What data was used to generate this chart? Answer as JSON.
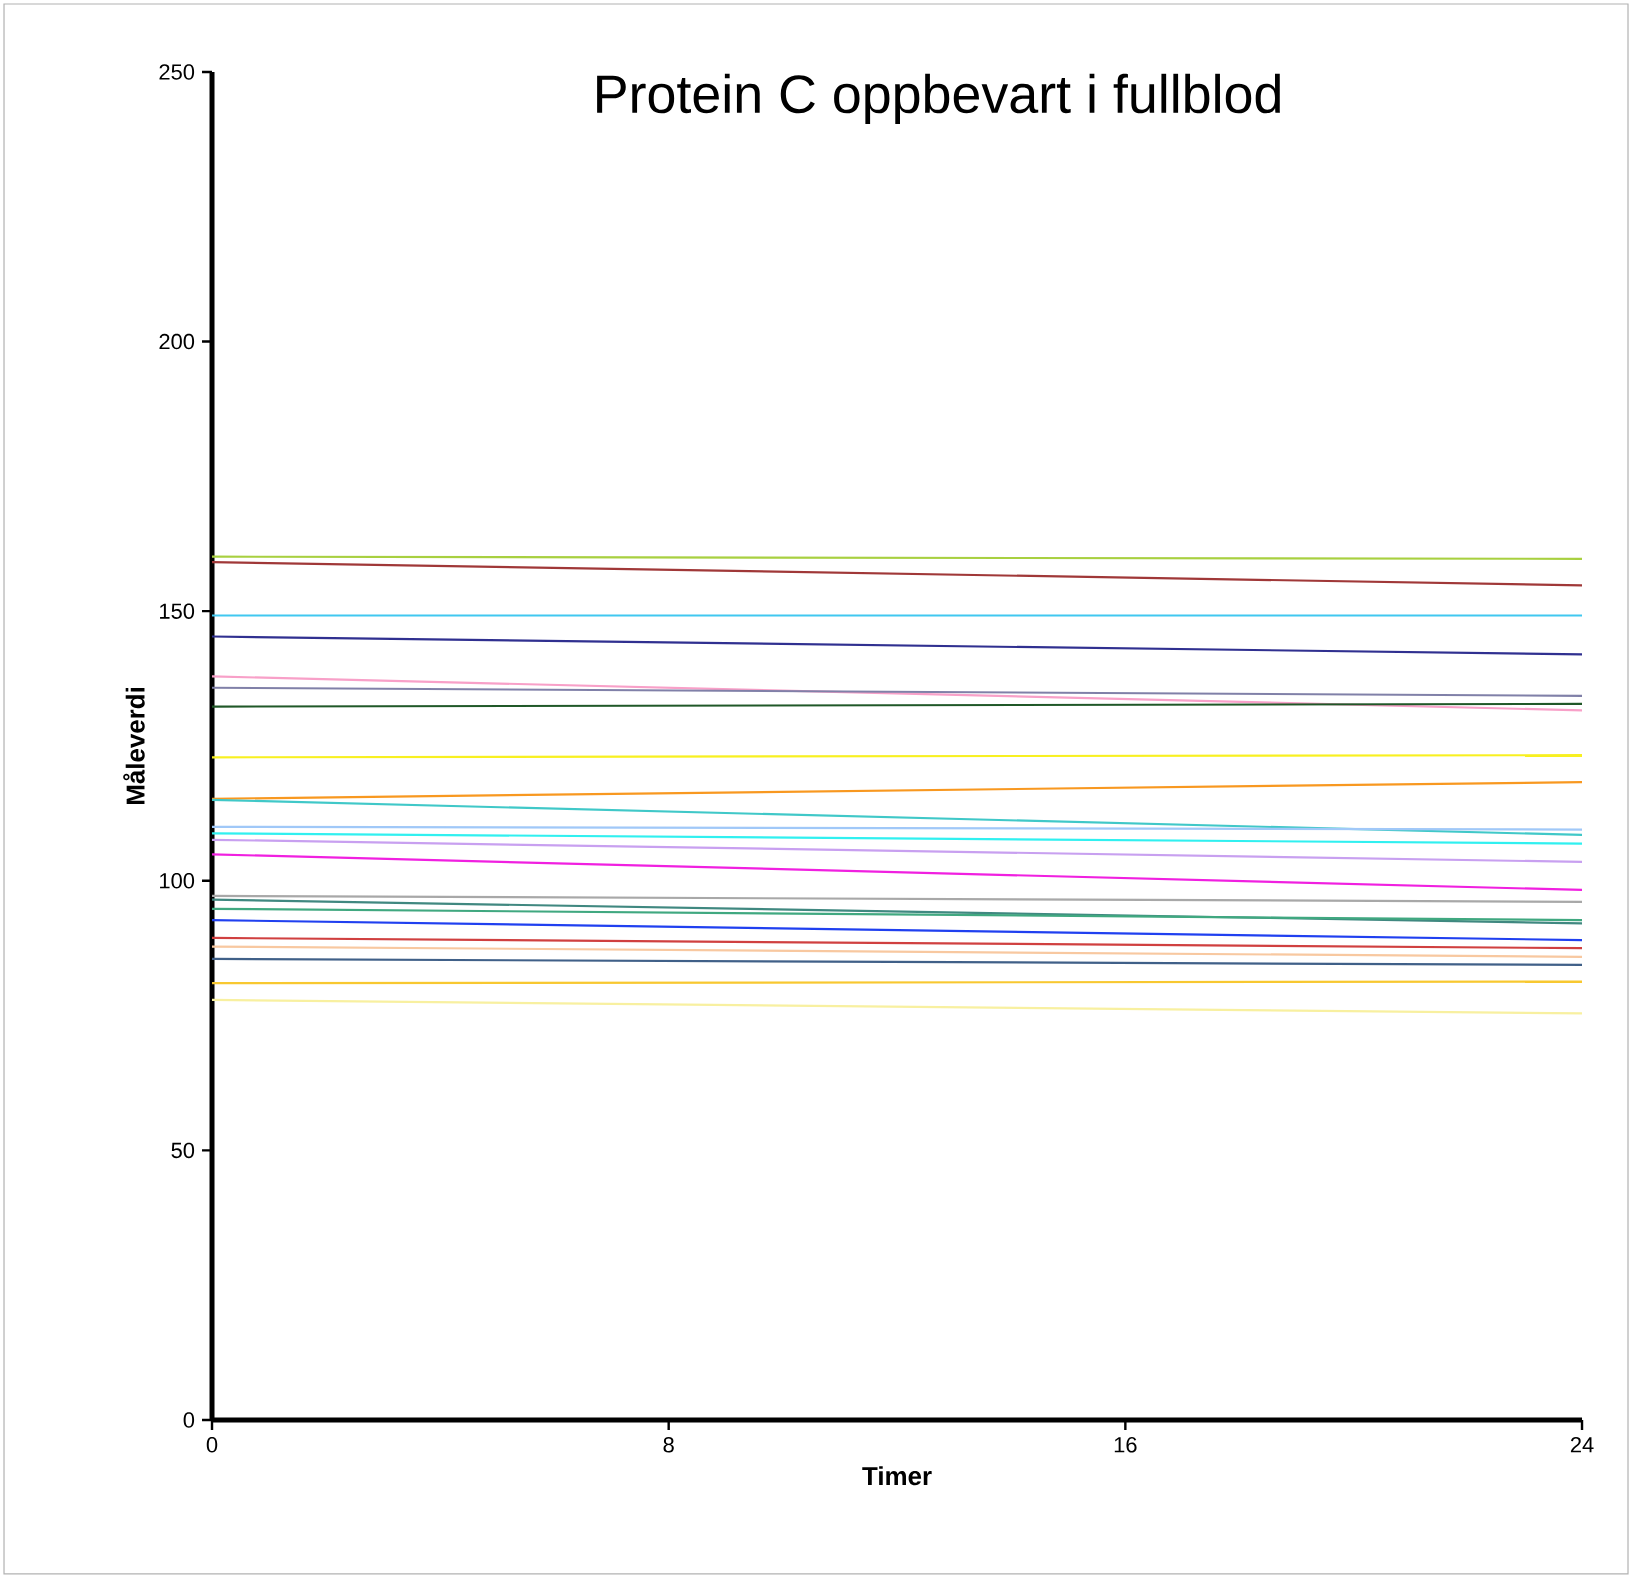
{
  "chart_data": {
    "type": "line",
    "title": "Protein C oppbevart i fullblod",
    "xlabel": "Timer",
    "ylabel": "Måleverdi",
    "x": [
      0,
      24
    ],
    "xlim": [
      0,
      24
    ],
    "xticks": [
      0,
      8,
      16,
      24
    ],
    "ylim": [
      0,
      250
    ],
    "yticks": [
      0,
      50,
      100,
      150,
      200,
      250
    ],
    "marker": "none",
    "line_style": "solid",
    "series": [
      {
        "color": "#a8d040",
        "values": [
          160.1,
          159.7
        ]
      },
      {
        "color": "#a03838",
        "values": [
          159.1,
          154.8
        ]
      },
      {
        "color": "#40c8f0",
        "values": [
          149.2,
          149.2
        ]
      },
      {
        "color": "#303090",
        "values": [
          145.3,
          142.0
        ]
      },
      {
        "color": "#f8a0c8",
        "values": [
          137.9,
          131.6
        ]
      },
      {
        "color": "#8080a8",
        "values": [
          135.8,
          134.3
        ]
      },
      {
        "color": "#205828",
        "values": [
          132.3,
          132.8
        ]
      },
      {
        "color": "#f8f020",
        "values": [
          122.9,
          123.3
        ]
      },
      {
        "color": "#f89820",
        "values": [
          115.2,
          118.3
        ]
      },
      {
        "color": "#40c8c8",
        "values": [
          115.0,
          108.5
        ]
      },
      {
        "color": "#a0c8f8",
        "values": [
          110.0,
          109.5
        ]
      },
      {
        "color": "#30f0f0",
        "values": [
          108.8,
          106.9
        ]
      },
      {
        "color": "#c8a0f0",
        "values": [
          107.6,
          103.5
        ]
      },
      {
        "color": "#f020e0",
        "values": [
          104.9,
          98.3
        ]
      },
      {
        "color": "#a8a8a8",
        "values": [
          97.2,
          96.1
        ]
      },
      {
        "color": "#408880",
        "values": [
          96.5,
          92.1
        ]
      },
      {
        "color": "#40a880",
        "values": [
          94.8,
          92.7
        ]
      },
      {
        "color": "#2040f0",
        "values": [
          92.7,
          89.0
        ]
      },
      {
        "color": "#d04040",
        "values": [
          89.4,
          87.5
        ]
      },
      {
        "color": "#f8c8a0",
        "values": [
          87.8,
          85.9
        ]
      },
      {
        "color": "#406088",
        "values": [
          85.5,
          84.4
        ]
      },
      {
        "color": "#f8c830",
        "values": [
          81.0,
          81.3
        ]
      },
      {
        "color": "#f8f0a0",
        "values": [
          77.9,
          75.4
        ]
      }
    ]
  }
}
